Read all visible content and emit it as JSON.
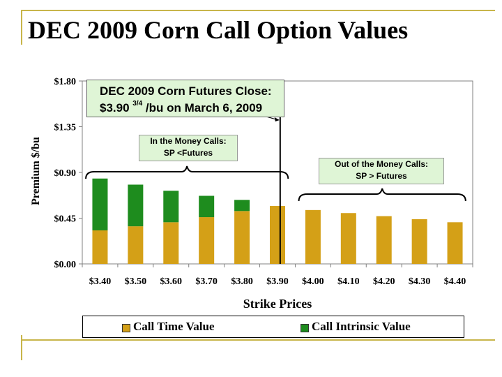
{
  "slide": {
    "title": "DEC 2009 Corn Call Option Values"
  },
  "colors": {
    "time_value": "#d4a017",
    "intrinsic_value": "#1e8c1e",
    "callout_fill": "#dff5d6",
    "accent_lines": "#c8b54a"
  },
  "callouts": {
    "futures_line1": "DEC 2009 Corn Futures Close:",
    "futures_price": "$3.90",
    "futures_fraction": "3/4",
    "futures_rest": "/bu on March 6, 2009",
    "itm_line1": "In the Money Calls:",
    "itm_line2": "SP <Futures",
    "otm_line1": "Out of the Money Calls:",
    "otm_line2": "SP > Futures"
  },
  "legend": {
    "time_value_label": "Call Time Value",
    "intrinsic_value_label": "Call Intrinsic Value"
  },
  "chart_data": {
    "type": "bar",
    "stacked": true,
    "xlabel": "Strike Prices",
    "ylabel": "Premium $/bu",
    "categories": [
      "$3.40",
      "$3.50",
      "$3.60",
      "$3.70",
      "$3.80",
      "$3.90",
      "$4.00",
      "$4.10",
      "$4.20",
      "$4.30",
      "$4.40"
    ],
    "ylim": [
      0,
      1.8
    ],
    "yticks": [
      0,
      0.45,
      0.9,
      1.35,
      1.8
    ],
    "ytick_labels": [
      "$0.00",
      "$0.45",
      "$0.90",
      "$1.35",
      "$1.80"
    ],
    "futures_close": 3.9075,
    "series": [
      {
        "name": "Call Time Value",
        "values": [
          0.33,
          0.37,
          0.41,
          0.46,
          0.52,
          0.57,
          0.53,
          0.5,
          0.47,
          0.44,
          0.41
        ]
      },
      {
        "name": "Call Intrinsic Value",
        "values": [
          0.51,
          0.41,
          0.31,
          0.21,
          0.11,
          0,
          0,
          0,
          0,
          0,
          0
        ]
      }
    ],
    "grid": false,
    "legend_position": "bottom"
  }
}
